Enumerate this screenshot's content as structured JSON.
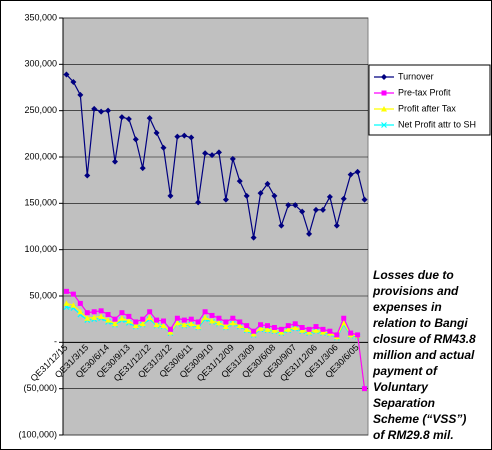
{
  "chart_data": {
    "type": "line",
    "categories": [
      "QE31/12/15",
      null,
      null,
      "QE31/3/15",
      null,
      null,
      "QE30/6/14",
      null,
      null,
      "QE30/9/13",
      null,
      null,
      "QE31/12/12",
      null,
      null,
      "QE31/3/12",
      null,
      null,
      "QE30/6/11",
      null,
      null,
      "QE30/9/10",
      null,
      null,
      "QE31/12/09",
      null,
      null,
      "QE31/3/09",
      null,
      null,
      "QE30/6/08",
      null,
      null,
      "QE30/9/07",
      null,
      null,
      "QE31/12/06",
      null,
      null,
      "QE31/3/06",
      null,
      null,
      "QE30/6/05",
      null
    ],
    "series": [
      {
        "name": "Turnover",
        "color": "#000080",
        "marker": "diamond",
        "values": [
          289000,
          281000,
          267000,
          180000,
          252000,
          249000,
          250000,
          195000,
          243000,
          241000,
          219000,
          188000,
          242000,
          226000,
          210000,
          158000,
          222000,
          223000,
          221000,
          151000,
          204000,
          202000,
          205000,
          154000,
          198000,
          174000,
          158000,
          113000,
          161000,
          171000,
          158000,
          126000,
          148000,
          148000,
          141000,
          117000,
          143000,
          143000,
          157000,
          126000,
          155000,
          181000,
          184000,
          154000
        ]
      },
      {
        "name": "Pre-tax Profit",
        "color": "#ff00ff",
        "marker": "square",
        "values": [
          55000,
          52000,
          42000,
          32000,
          33000,
          34000,
          30000,
          25000,
          32000,
          28000,
          22000,
          25000,
          33000,
          24000,
          23000,
          14000,
          26000,
          24000,
          25000,
          22000,
          33000,
          29000,
          26000,
          22000,
          26000,
          22000,
          18000,
          12000,
          19000,
          18000,
          16000,
          14000,
          18000,
          20000,
          16000,
          14000,
          17000,
          14000,
          12000,
          8000,
          26000,
          10000,
          8000,
          -50000
        ]
      },
      {
        "name": "Profit after Tax",
        "color": "#ffff00",
        "marker": "triangle",
        "values": [
          42000,
          40000,
          33000,
          26000,
          27000,
          28000,
          24000,
          20000,
          26000,
          23000,
          18000,
          20000,
          27000,
          19000,
          18000,
          11000,
          21000,
          19000,
          20000,
          17000,
          27000,
          23000,
          21000,
          17000,
          21000,
          18000,
          14000,
          9000,
          15000,
          14000,
          13000,
          11000,
          14000,
          16000,
          13000,
          11000,
          13000,
          11000,
          10000,
          6000,
          21000,
          8000,
          7000,
          -50000
        ]
      },
      {
        "name": "Net Profit attr to SH",
        "color": "#00ffff",
        "marker": "x",
        "values": [
          38000,
          37000,
          30000,
          24000,
          25000,
          26000,
          22000,
          19000,
          24000,
          21000,
          17000,
          19000,
          25000,
          18000,
          17000,
          10000,
          20000,
          18000,
          19000,
          16000,
          25000,
          22000,
          20000,
          16000,
          20000,
          17000,
          13000,
          8000,
          14000,
          13000,
          12000,
          10000,
          13000,
          15000,
          12000,
          10000,
          12000,
          10000,
          9000,
          5000,
          19000,
          7000,
          6000,
          -50000
        ]
      }
    ],
    "ylim": [
      -100000,
      350000
    ],
    "yticks": [
      {
        "value": -100000,
        "label": "(100,000)"
      },
      {
        "value": -50000,
        "label": "(50,000)"
      },
      {
        "value": 0,
        "label": "-"
      },
      {
        "value": 50000,
        "label": "50,000"
      },
      {
        "value": 100000,
        "label": "100,000"
      },
      {
        "value": 150000,
        "label": "150,000"
      },
      {
        "value": 200000,
        "label": "200,000"
      },
      {
        "value": 250000,
        "label": "250,000"
      },
      {
        "value": 300000,
        "label": "300,000"
      },
      {
        "value": 350000,
        "label": "350,000"
      }
    ],
    "grid": true,
    "legend": "right",
    "plot_background": "#c0c0c0",
    "annotation": {
      "color": "#ff0000",
      "lines": [
        "Losses due to",
        "provisions and",
        "expenses in",
        "relation to Bangi",
        "closure of RM43.8",
        "million and actual",
        "payment of",
        "Voluntary",
        "Separation",
        "Scheme (“VSS”)",
        "of RM29.8 mil."
      ]
    }
  }
}
